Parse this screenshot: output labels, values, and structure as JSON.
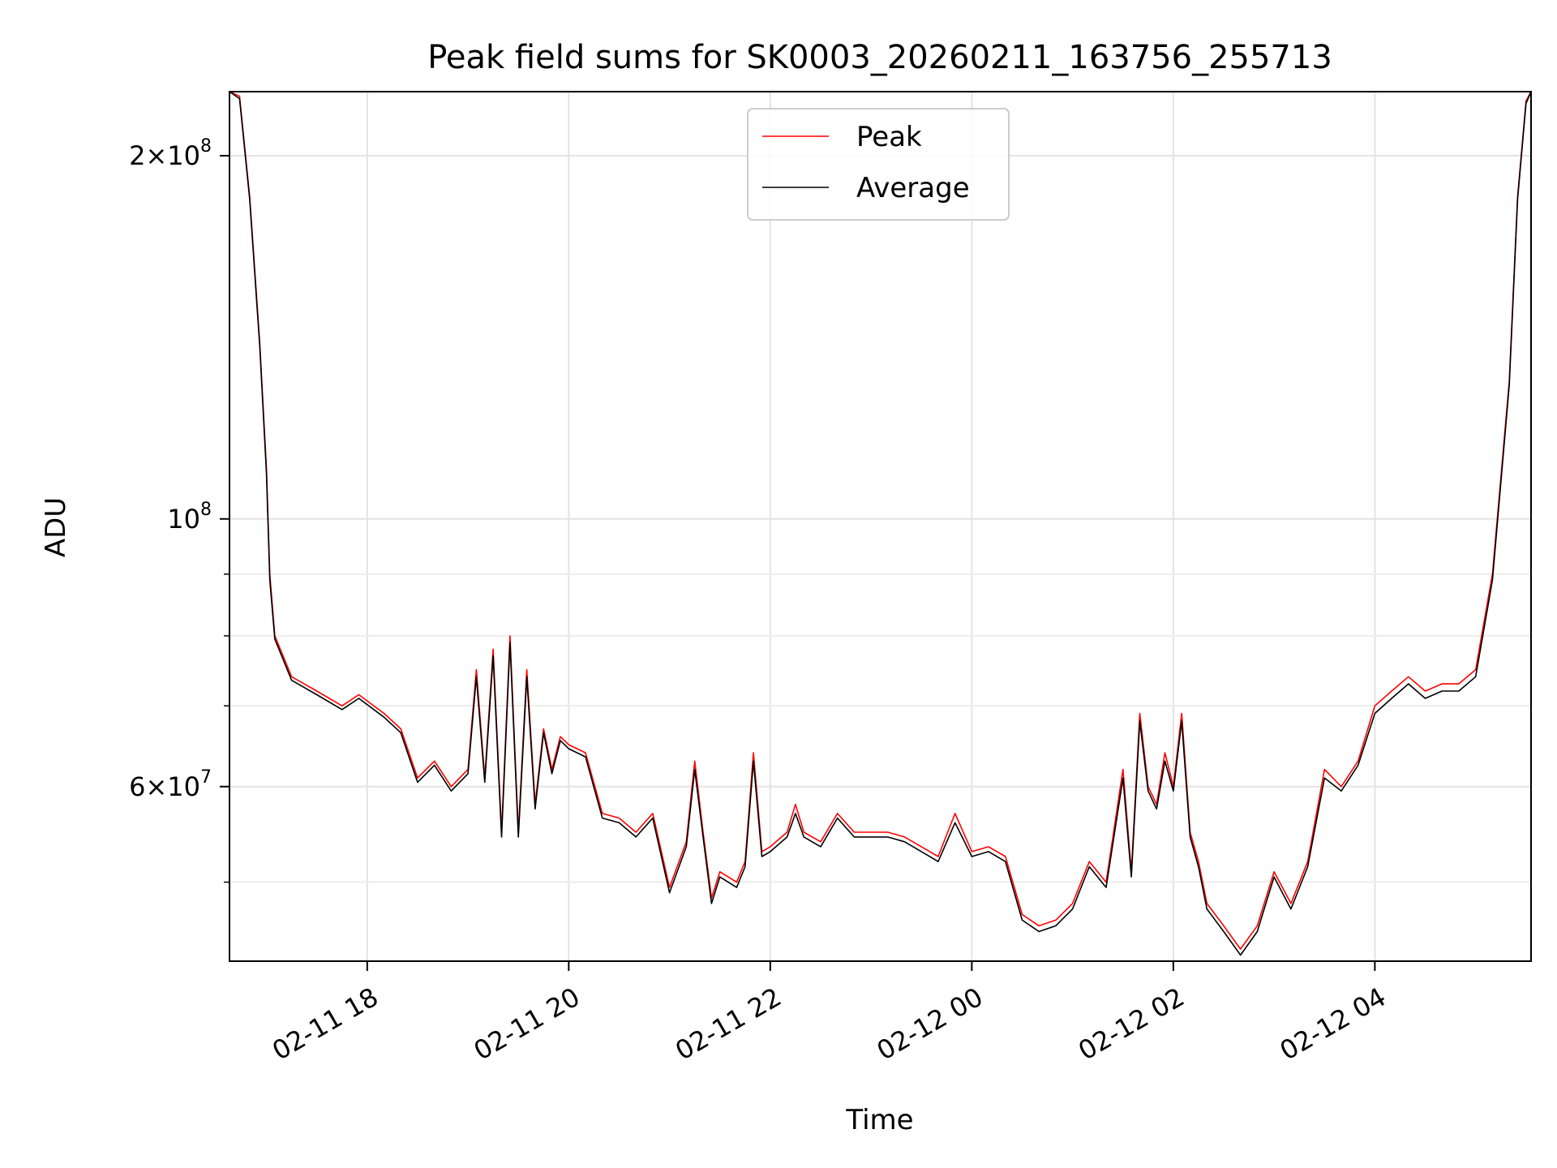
{
  "chart_data": {
    "type": "line",
    "title": "Peak field sums for SK0003_20260211_163756_255713",
    "xlabel": "Time",
    "ylabel": "ADU",
    "y_scale": "log",
    "grid": true,
    "legend_position": "top-center",
    "xlim": [
      "2026-02-11 16:38",
      "2026-02-12 05:33"
    ],
    "ylim": [
      43000000,
      226000000
    ],
    "x_ticks": [
      {
        "value": "2026-02-11 18:00",
        "label": "02-11 18"
      },
      {
        "value": "2026-02-11 20:00",
        "label": "02-11 20"
      },
      {
        "value": "2026-02-11 22:00",
        "label": "02-11 22"
      },
      {
        "value": "2026-02-12 00:00",
        "label": "02-12 00"
      },
      {
        "value": "2026-02-12 02:00",
        "label": "02-12 02"
      },
      {
        "value": "2026-02-12 04:00",
        "label": "02-12 04"
      }
    ],
    "y_ticks": [
      {
        "value": 200000000,
        "mantissa": "2",
        "exponent": "8"
      },
      {
        "value": 100000000,
        "mantissa": "",
        "exponent": "8"
      },
      {
        "value": 60000000,
        "mantissa": "6",
        "exponent": "7"
      }
    ],
    "y_minor_ticks": [
      50000000,
      70000000,
      80000000,
      90000000
    ],
    "series": [
      {
        "name": "Peak",
        "color": "#ff0000",
        "x": [
          "2026-02-11 16:38",
          "2026-02-11 16:44",
          "2026-02-11 16:50",
          "2026-02-11 16:56",
          "2026-02-11 17:00",
          "2026-02-11 17:02",
          "2026-02-11 17:05",
          "2026-02-11 17:15",
          "2026-02-11 17:30",
          "2026-02-11 17:45",
          "2026-02-11 17:55",
          "2026-02-11 18:10",
          "2026-02-11 18:20",
          "2026-02-11 18:30",
          "2026-02-11 18:40",
          "2026-02-11 18:50",
          "2026-02-11 19:00",
          "2026-02-11 19:05",
          "2026-02-11 19:10",
          "2026-02-11 19:15",
          "2026-02-11 19:20",
          "2026-02-11 19:25",
          "2026-02-11 19:30",
          "2026-02-11 19:35",
          "2026-02-11 19:40",
          "2026-02-11 19:45",
          "2026-02-11 19:50",
          "2026-02-11 19:55",
          "2026-02-11 20:00",
          "2026-02-11 20:10",
          "2026-02-11 20:20",
          "2026-02-11 20:30",
          "2026-02-11 20:40",
          "2026-02-11 20:50",
          "2026-02-11 21:00",
          "2026-02-11 21:10",
          "2026-02-11 21:15",
          "2026-02-11 21:20",
          "2026-02-11 21:25",
          "2026-02-11 21:30",
          "2026-02-11 21:40",
          "2026-02-11 21:45",
          "2026-02-11 21:50",
          "2026-02-11 21:55",
          "2026-02-11 22:00",
          "2026-02-11 22:10",
          "2026-02-11 22:15",
          "2026-02-11 22:20",
          "2026-02-11 22:30",
          "2026-02-11 22:40",
          "2026-02-11 22:50",
          "2026-02-11 23:00",
          "2026-02-11 23:10",
          "2026-02-11 23:20",
          "2026-02-11 23:30",
          "2026-02-11 23:40",
          "2026-02-11 23:50",
          "2026-02-12 00:00",
          "2026-02-12 00:10",
          "2026-02-12 00:20",
          "2026-02-12 00:30",
          "2026-02-12 00:40",
          "2026-02-12 00:50",
          "2026-02-12 01:00",
          "2026-02-12 01:10",
          "2026-02-12 01:20",
          "2026-02-12 01:30",
          "2026-02-12 01:35",
          "2026-02-12 01:40",
          "2026-02-12 01:45",
          "2026-02-12 01:50",
          "2026-02-12 01:55",
          "2026-02-12 02:00",
          "2026-02-12 02:05",
          "2026-02-12 02:10",
          "2026-02-12 02:15",
          "2026-02-12 02:20",
          "2026-02-12 02:30",
          "2026-02-12 02:40",
          "2026-02-12 02:50",
          "2026-02-12 03:00",
          "2026-02-12 03:10",
          "2026-02-12 03:20",
          "2026-02-12 03:30",
          "2026-02-12 03:40",
          "2026-02-12 03:50",
          "2026-02-12 04:00",
          "2026-02-12 04:10",
          "2026-02-12 04:20",
          "2026-02-12 04:30",
          "2026-02-12 04:40",
          "2026-02-12 04:50",
          "2026-02-12 05:00",
          "2026-02-12 05:10",
          "2026-02-12 05:20",
          "2026-02-12 05:25",
          "2026-02-12 05:30",
          "2026-02-12 05:33"
        ],
        "values": [
          226000000,
          224000000,
          185000000,
          140000000,
          110000000,
          90000000,
          80000000,
          74000000,
          72000000,
          70000000,
          71500000,
          69000000,
          67000000,
          61000000,
          63000000,
          60000000,
          62000000,
          75000000,
          61000000,
          78000000,
          55000000,
          80000000,
          55000000,
          75000000,
          58000000,
          67000000,
          62000000,
          66000000,
          65000000,
          64000000,
          57000000,
          56500000,
          55000000,
          57000000,
          49500000,
          54000000,
          63000000,
          55000000,
          48500000,
          51000000,
          50000000,
          52000000,
          64000000,
          53000000,
          53500000,
          55000000,
          58000000,
          55000000,
          54000000,
          57000000,
          55000000,
          55000000,
          55000000,
          54500000,
          53500000,
          52500000,
          57000000,
          53000000,
          53500000,
          52500000,
          47000000,
          46000000,
          46500000,
          48000000,
          52000000,
          50000000,
          62000000,
          51000000,
          69000000,
          60000000,
          58000000,
          64000000,
          60000000,
          69000000,
          55000000,
          52000000,
          48000000,
          46000000,
          44000000,
          46000000,
          51000000,
          48000000,
          52000000,
          62000000,
          60000000,
          63000000,
          70000000,
          72000000,
          74000000,
          72000000,
          73000000,
          73000000,
          75000000,
          90000000,
          130000000,
          185000000,
          222000000,
          226000000
        ]
      },
      {
        "name": "Average",
        "color": "#000000",
        "x": [
          "2026-02-11 16:38",
          "2026-02-11 16:44",
          "2026-02-11 16:50",
          "2026-02-11 16:56",
          "2026-02-11 17:00",
          "2026-02-11 17:02",
          "2026-02-11 17:05",
          "2026-02-11 17:15",
          "2026-02-11 17:30",
          "2026-02-11 17:45",
          "2026-02-11 17:55",
          "2026-02-11 18:10",
          "2026-02-11 18:20",
          "2026-02-11 18:30",
          "2026-02-11 18:40",
          "2026-02-11 18:50",
          "2026-02-11 19:00",
          "2026-02-11 19:05",
          "2026-02-11 19:10",
          "2026-02-11 19:15",
          "2026-02-11 19:20",
          "2026-02-11 19:25",
          "2026-02-11 19:30",
          "2026-02-11 19:35",
          "2026-02-11 19:40",
          "2026-02-11 19:45",
          "2026-02-11 19:50",
          "2026-02-11 19:55",
          "2026-02-11 20:00",
          "2026-02-11 20:10",
          "2026-02-11 20:20",
          "2026-02-11 20:30",
          "2026-02-11 20:40",
          "2026-02-11 20:50",
          "2026-02-11 21:00",
          "2026-02-11 21:10",
          "2026-02-11 21:15",
          "2026-02-11 21:20",
          "2026-02-11 21:25",
          "2026-02-11 21:30",
          "2026-02-11 21:40",
          "2026-02-11 21:45",
          "2026-02-11 21:50",
          "2026-02-11 21:55",
          "2026-02-11 22:00",
          "2026-02-11 22:10",
          "2026-02-11 22:15",
          "2026-02-11 22:20",
          "2026-02-11 22:30",
          "2026-02-11 22:40",
          "2026-02-11 22:50",
          "2026-02-11 23:00",
          "2026-02-11 23:10",
          "2026-02-11 23:20",
          "2026-02-11 23:30",
          "2026-02-11 23:40",
          "2026-02-11 23:50",
          "2026-02-12 00:00",
          "2026-02-12 00:10",
          "2026-02-12 00:20",
          "2026-02-12 00:30",
          "2026-02-12 00:40",
          "2026-02-12 00:50",
          "2026-02-12 01:00",
          "2026-02-12 01:10",
          "2026-02-12 01:20",
          "2026-02-12 01:30",
          "2026-02-12 01:35",
          "2026-02-12 01:40",
          "2026-02-12 01:45",
          "2026-02-12 01:50",
          "2026-02-12 01:55",
          "2026-02-12 02:00",
          "2026-02-12 02:05",
          "2026-02-12 02:10",
          "2026-02-12 02:15",
          "2026-02-12 02:20",
          "2026-02-12 02:30",
          "2026-02-12 02:40",
          "2026-02-12 02:50",
          "2026-02-12 03:00",
          "2026-02-12 03:10",
          "2026-02-12 03:20",
          "2026-02-12 03:30",
          "2026-02-12 03:40",
          "2026-02-12 03:50",
          "2026-02-12 04:00",
          "2026-02-12 04:10",
          "2026-02-12 04:20",
          "2026-02-12 04:30",
          "2026-02-12 04:40",
          "2026-02-12 04:50",
          "2026-02-12 05:00",
          "2026-02-12 05:10",
          "2026-02-12 05:20",
          "2026-02-12 05:25",
          "2026-02-12 05:30",
          "2026-02-12 05:33"
        ],
        "values": [
          226000000,
          223000000,
          184000000,
          139000000,
          109000000,
          89000000,
          79500000,
          73500000,
          71500000,
          69500000,
          71000000,
          68500000,
          66500000,
          60500000,
          62500000,
          59500000,
          61500000,
          74000000,
          60500000,
          77000000,
          54500000,
          79000000,
          54500000,
          74000000,
          57500000,
          66500000,
          61500000,
          65500000,
          64500000,
          63500000,
          56500000,
          56000000,
          54500000,
          56500000,
          49000000,
          53500000,
          62000000,
          54500000,
          48000000,
          50500000,
          49500000,
          51500000,
          63000000,
          52500000,
          53000000,
          54500000,
          57000000,
          54500000,
          53500000,
          56500000,
          54500000,
          54500000,
          54500000,
          54000000,
          53000000,
          52000000,
          56000000,
          52500000,
          53000000,
          52000000,
          46500000,
          45500000,
          46000000,
          47500000,
          51500000,
          49500000,
          61000000,
          50500000,
          68000000,
          59500000,
          57500000,
          63000000,
          59500000,
          68000000,
          54500000,
          51500000,
          47500000,
          45500000,
          43500000,
          45500000,
          50500000,
          47500000,
          51500000,
          61000000,
          59500000,
          62500000,
          69000000,
          71000000,
          73000000,
          71000000,
          72000000,
          72000000,
          74000000,
          89000000,
          129000000,
          184000000,
          221000000,
          226000000
        ]
      }
    ]
  }
}
